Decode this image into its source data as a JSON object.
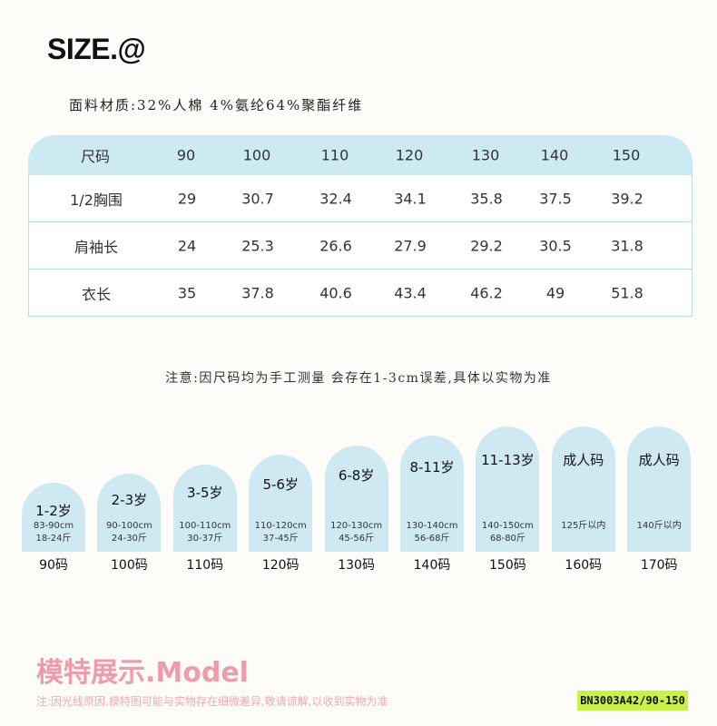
{
  "title": "SIZE.@",
  "fabric": "面料材质:32%人棉 4%氨纶64%聚酯纤维",
  "table": {
    "header": [
      "尺码",
      "90",
      "100",
      "110",
      "120",
      "130",
      "140",
      "150"
    ],
    "rows": [
      [
        "1/2胸围",
        "29",
        "30.7",
        "32.4",
        "34.1",
        "35.8",
        "37.5",
        "39.2"
      ],
      [
        "肩袖长",
        "24",
        "25.3",
        "26.6",
        "27.9",
        "29.2",
        "30.5",
        "31.8"
      ],
      [
        "衣长",
        "35",
        "37.8",
        "40.6",
        "43.4",
        "46.2",
        "49",
        "51.8"
      ]
    ]
  },
  "note": "注意:因尺码均为手工测量 会存在1-3cm误差,具体以实物为准",
  "size_guide": [
    {
      "age": "1-2岁",
      "height": "83-90cm",
      "weight": "18-24斤",
      "size": "90码"
    },
    {
      "age": "2-3岁",
      "height": "90-100cm",
      "weight": "24-30斤",
      "size": "100码"
    },
    {
      "age": "3-5岁",
      "height": "100-110cm",
      "weight": "30-37斤",
      "size": "110码"
    },
    {
      "age": "5-6岁",
      "height": "110-120cm",
      "weight": "37-45斤",
      "size": "120码"
    },
    {
      "age": "6-8岁",
      "height": "120-130cm",
      "weight": "45-56斤",
      "size": "130码"
    },
    {
      "age": "8-11岁",
      "height": "130-140cm",
      "weight": "56-68斤",
      "size": "140码"
    },
    {
      "age": "11-13岁",
      "height": "140-150cm",
      "weight": "68-80斤",
      "size": "150码"
    },
    {
      "age": "成人码",
      "height": "125斤以内",
      "weight": "",
      "size": "160码"
    },
    {
      "age": "成人码",
      "height": "140斤以内",
      "weight": "",
      "size": "170码"
    }
  ],
  "model_title": "模特展示.Model",
  "disclaimer": "注:因光线原因,模特图可能与实物存在细微差异,敬请谅解,以收到实物为准",
  "product_code": "BN3003A42/90-150",
  "colors": {
    "accent_blue": "#cfe9f3",
    "pink": "#ee9cab",
    "code_bg": "#c7f24a"
  }
}
